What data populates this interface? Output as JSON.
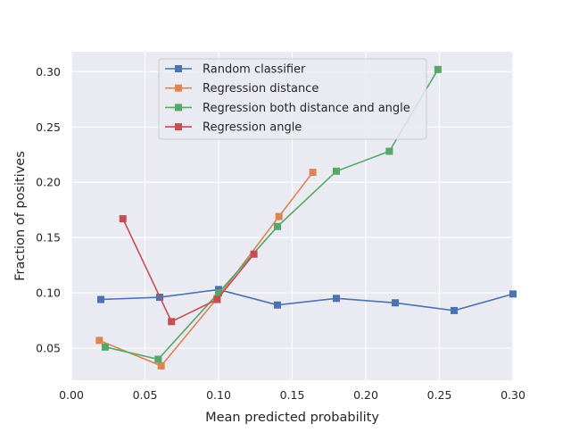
{
  "chart_data": {
    "type": "line",
    "title": "",
    "xlabel": "Mean predicted probability",
    "ylabel": "Fraction of positives",
    "xlim": [
      0.0,
      0.3
    ],
    "ylim": [
      0.021,
      0.318
    ],
    "xticks": [
      0.0,
      0.05,
      0.1,
      0.15,
      0.2,
      0.25,
      0.3
    ],
    "xtick_labels": [
      "0.00",
      "0.05",
      "0.10",
      "0.15",
      "0.20",
      "0.25",
      "0.30"
    ],
    "yticks": [
      0.05,
      0.1,
      0.15,
      0.2,
      0.25,
      0.3
    ],
    "ytick_labels": [
      "0.05",
      "0.10",
      "0.15",
      "0.20",
      "0.25",
      "0.30"
    ],
    "grid": true,
    "legend_position": "top-center",
    "series": [
      {
        "name": "Random classifier",
        "color": "#4c72b0",
        "marker": "square",
        "x": [
          0.02,
          0.06,
          0.1,
          0.14,
          0.18,
          0.22,
          0.26,
          0.3
        ],
        "y": [
          0.094,
          0.096,
          0.103,
          0.089,
          0.095,
          0.091,
          0.084,
          0.099
        ]
      },
      {
        "name": "Regression distance",
        "color": "#dd8452",
        "marker": "square",
        "x": [
          0.019,
          0.061,
          0.099,
          0.141,
          0.164
        ],
        "y": [
          0.057,
          0.034,
          0.095,
          0.169,
          0.209
        ]
      },
      {
        "name": "Regression both distance and angle",
        "color": "#55a868",
        "marker": "square",
        "x": [
          0.023,
          0.059,
          0.1,
          0.14,
          0.18,
          0.216,
          0.249
        ],
        "y": [
          0.051,
          0.04,
          0.1,
          0.16,
          0.21,
          0.228,
          0.302
        ]
      },
      {
        "name": "Regression angle",
        "color": "#c44e52",
        "marker": "square",
        "x": [
          0.035,
          0.068,
          0.099,
          0.124
        ],
        "y": [
          0.167,
          0.074,
          0.094,
          0.135
        ]
      }
    ]
  }
}
